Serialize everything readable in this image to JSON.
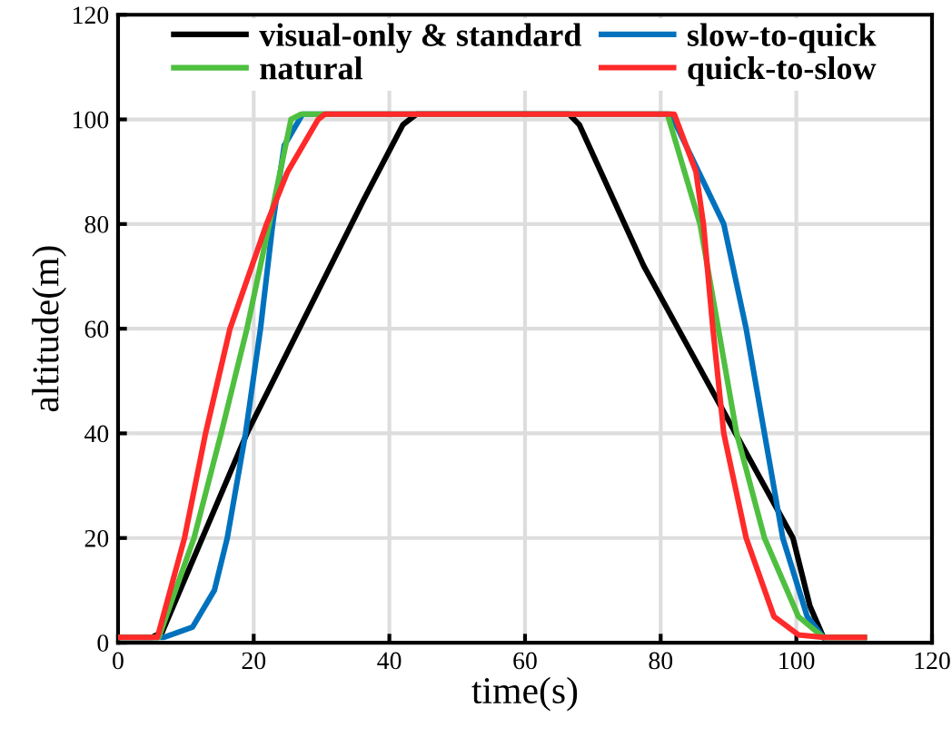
{
  "chart_data": {
    "type": "line",
    "xlabel": "time(s)",
    "ylabel": "altitude(m)",
    "xlim": [
      0,
      120
    ],
    "ylim": [
      0,
      120
    ],
    "xticks": [
      0,
      20,
      40,
      60,
      80,
      100,
      120
    ],
    "yticks": [
      0,
      20,
      40,
      60,
      80,
      100,
      120
    ],
    "grid": true,
    "legend": "top",
    "line_style": "solid",
    "marker": "none",
    "series": [
      {
        "name": "visual-only & standard",
        "color": "#000000",
        "x": [
          0,
          5,
          6.5,
          19,
          36.2,
          42,
          44,
          66.5,
          68,
          77.5,
          99.5,
          102,
          104,
          110
        ],
        "values": [
          1,
          1,
          2,
          40,
          84.6,
          99,
          101,
          101,
          99,
          72,
          20,
          7,
          1,
          1
        ]
      },
      {
        "name": "slow-to-quick",
        "color": "#0072bd",
        "x": [
          0,
          6.7,
          11,
          14.2,
          16.1,
          18.8,
          21,
          22.8,
          24.5,
          27.2,
          81.5,
          89.3,
          92.6,
          95.3,
          98,
          101.6,
          104
        ],
        "values": [
          1,
          1,
          3,
          10,
          20,
          40,
          60,
          80,
          95,
          101,
          101,
          80,
          60,
          40,
          20,
          5,
          1
        ]
      },
      {
        "name": "natural",
        "color": "#4fbf40",
        "x": [
          0,
          6,
          11.2,
          15.2,
          19,
          22.3,
          25.5,
          27,
          81,
          85.8,
          88.5,
          91.2,
          95.3,
          100.3,
          104,
          110
        ],
        "values": [
          1,
          1,
          20,
          40,
          60,
          80,
          100,
          101,
          101,
          80,
          60,
          40,
          20,
          5,
          1,
          1
        ]
      },
      {
        "name": "quick-to-slow",
        "color": "#ff2a2a",
        "x": [
          0,
          5.8,
          9.8,
          12.9,
          16.5,
          21.9,
          25,
          29.5,
          30.5,
          82,
          85.2,
          86.3,
          87.7,
          89.3,
          92.6,
          96.7,
          100.3,
          104,
          110
        ],
        "values": [
          1,
          1,
          20,
          40,
          60,
          80,
          90,
          100,
          101,
          101,
          90,
          80,
          60,
          40,
          20,
          5,
          1.5,
          1,
          1
        ]
      }
    ]
  }
}
